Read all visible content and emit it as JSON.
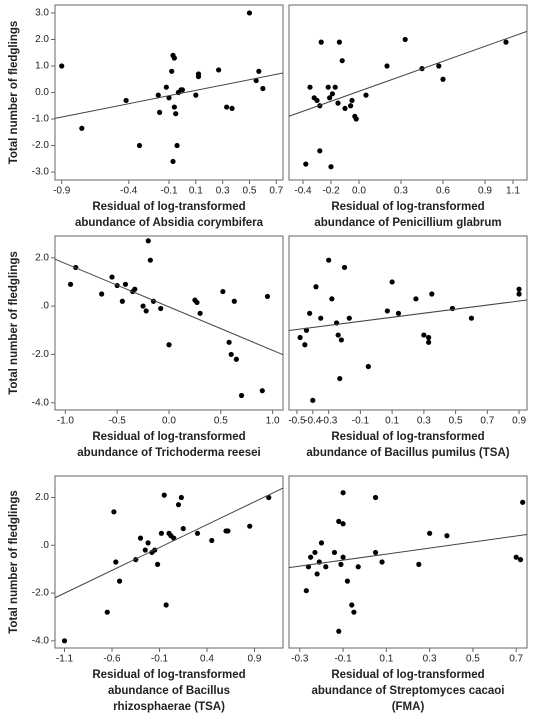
{
  "chart_data": [
    {
      "type": "scatter",
      "ylabel": "Total number of fledglings",
      "xlabel": [
        "Residual of log-transformed",
        "abundance of Absidia corymbifera"
      ],
      "x": [
        -0.9,
        -0.75,
        -0.42,
        -0.32,
        -0.18,
        -0.17,
        -0.12,
        -0.1,
        -0.08,
        -0.07,
        -0.06,
        -0.06,
        -0.05,
        -0.07,
        -0.04,
        -0.03,
        -0.01,
        0.0,
        0.1,
        0.12,
        0.12,
        0.27,
        0.33,
        0.37,
        0.5,
        0.55,
        0.57,
        0.6
      ],
      "y": [
        1.0,
        -1.35,
        -0.3,
        -2.0,
        -0.1,
        -0.75,
        0.2,
        -0.2,
        0.8,
        1.4,
        1.3,
        -0.55,
        -0.8,
        -2.6,
        -2.0,
        0.0,
        0.1,
        0.1,
        -0.1,
        0.6,
        0.7,
        0.85,
        -0.55,
        -0.6,
        3.0,
        0.45,
        0.8,
        0.15
      ],
      "xlim": [
        -0.95,
        0.75
      ],
      "ylim": [
        -3.3,
        3.3
      ],
      "xticks": [
        -0.9,
        -0.4,
        -0.1,
        0.1,
        0.3,
        0.5,
        0.7
      ],
      "yticks": [
        {
          "value": 3,
          "label": "3.0"
        },
        {
          "value": 2,
          "label": "2.0"
        },
        {
          "value": 1,
          "label": "1.0"
        },
        {
          "value": 0,
          "label": "0.0"
        },
        {
          "value": -1,
          "label": "-1.0"
        },
        {
          "value": -2,
          "label": "-2.0"
        },
        {
          "value": -3,
          "label": "-3.0"
        }
      ],
      "color": "#000000",
      "trendline": true
    },
    {
      "type": "scatter",
      "xlabel": [
        "Residual of log-transformed",
        "abundance of Penicillium glabrum"
      ],
      "x": [
        -0.38,
        -0.35,
        -0.32,
        -0.3,
        -0.28,
        -0.27,
        -0.28,
        -0.22,
        -0.21,
        -0.2,
        -0.19,
        -0.17,
        -0.15,
        -0.14,
        -0.12,
        -0.1,
        -0.06,
        -0.05,
        -0.03,
        -0.02,
        0.05,
        0.2,
        0.33,
        0.45,
        0.57,
        0.6,
        1.05
      ],
      "y": [
        -2.7,
        0.2,
        -0.2,
        -0.3,
        -0.5,
        1.9,
        -2.2,
        0.2,
        -0.2,
        -2.8,
        -0.05,
        0.2,
        -0.4,
        1.9,
        1.2,
        -0.6,
        -0.5,
        -0.3,
        -0.9,
        -1.0,
        -0.1,
        1.0,
        2.0,
        0.9,
        1.0,
        0.5,
        1.9
      ],
      "xlim": [
        -0.5,
        1.2
      ],
      "ylim": [
        -3.3,
        3.3
      ],
      "xticks": [
        -0.4,
        -0.2,
        {
          "value": 0,
          "label": "0.0"
        },
        0.3,
        0.6,
        0.9,
        1.1
      ],
      "color": "#000000",
      "trendline": true
    },
    {
      "type": "scatter",
      "ylabel": "Total number of fledglings",
      "xlabel": [
        "Residual of log-transformed",
        "abundance of Trichoderma reesei"
      ],
      "x": [
        -0.95,
        -0.9,
        -0.65,
        -0.55,
        -0.5,
        -0.45,
        -0.42,
        -0.35,
        -0.33,
        -0.25,
        -0.22,
        -0.2,
        -0.18,
        -0.15,
        -0.08,
        0.0,
        0.25,
        0.27,
        0.3,
        0.52,
        0.58,
        0.6,
        0.63,
        0.65,
        0.7,
        0.9,
        0.95
      ],
      "y": [
        0.9,
        1.6,
        0.5,
        1.2,
        0.85,
        0.2,
        0.9,
        0.6,
        0.7,
        0.0,
        -0.2,
        2.7,
        1.9,
        0.2,
        -0.1,
        -1.6,
        0.25,
        0.15,
        -0.3,
        0.6,
        -1.5,
        -2.0,
        0.2,
        -2.2,
        -3.7,
        -3.5,
        0.4
      ],
      "xlim": [
        -1.1,
        1.1
      ],
      "ylim": [
        -4.3,
        2.9
      ],
      "xticks": [
        {
          "value": -1,
          "label": "-1.0"
        },
        -0.5,
        {
          "value": 0,
          "label": "0.0"
        },
        0.5,
        {
          "value": 1,
          "label": "1.0"
        }
      ],
      "yticks": [
        {
          "value": 2,
          "label": "2.0"
        },
        {
          "value": 0,
          "label": ".0"
        },
        {
          "value": -2,
          "label": "-2.0"
        },
        {
          "value": -4,
          "label": "-4.0"
        }
      ],
      "color": "#000000",
      "trendline": true
    },
    {
      "type": "scatter",
      "xlabel": [
        "Residual of log-transformed",
        "abundance of Bacillus pumilus (TSA)"
      ],
      "x": [
        -0.48,
        -0.45,
        -0.44,
        -0.42,
        -0.4,
        -0.38,
        -0.35,
        -0.3,
        -0.28,
        -0.25,
        -0.24,
        -0.23,
        -0.22,
        -0.2,
        -0.17,
        -0.05,
        0.07,
        0.1,
        0.14,
        0.25,
        0.3,
        0.33,
        0.33,
        0.35,
        0.48,
        0.6,
        0.9,
        0.9
      ],
      "y": [
        -1.3,
        -1.6,
        -1.0,
        -0.3,
        -3.9,
        0.8,
        -0.5,
        1.9,
        0.3,
        -0.7,
        -1.2,
        -3.0,
        -1.4,
        1.6,
        -0.5,
        -2.5,
        -0.2,
        1.0,
        -0.3,
        0.3,
        -1.2,
        -1.5,
        -1.3,
        0.5,
        -0.1,
        -0.5,
        0.7,
        0.5
      ],
      "xlim": [
        -0.55,
        0.95
      ],
      "ylim": [
        -4.3,
        2.9
      ],
      "xticks": [
        -0.5,
        -0.4,
        -0.3,
        -0.1,
        0.1,
        0.3,
        0.5,
        0.7,
        0.9
      ],
      "color": "#000000",
      "trendline": true
    },
    {
      "type": "scatter",
      "ylabel": "Total number of fledglings",
      "xlabel": [
        "Residual of log-transformed",
        "abundance of Bacillus",
        "rhizosphaerae (TSA)"
      ],
      "x": [
        -1.1,
        -0.65,
        -0.58,
        -0.56,
        -0.52,
        -0.35,
        -0.3,
        -0.25,
        -0.22,
        -0.18,
        -0.15,
        -0.12,
        -0.08,
        -0.05,
        -0.03,
        0.0,
        0.02,
        0.05,
        0.1,
        0.13,
        0.15,
        0.3,
        0.45,
        0.6,
        0.62,
        0.85,
        1.05
      ],
      "y": [
        -4.0,
        -2.8,
        1.4,
        -0.7,
        -1.5,
        -0.6,
        0.3,
        -0.2,
        0.1,
        -0.3,
        -0.2,
        -0.8,
        0.5,
        2.1,
        -2.5,
        0.5,
        0.4,
        0.3,
        1.7,
        2.0,
        0.7,
        0.5,
        0.2,
        0.6,
        0.6,
        0.8,
        2.0
      ],
      "xlim": [
        -1.2,
        1.2
      ],
      "ylim": [
        -4.3,
        2.9
      ],
      "xticks": [
        -1.1,
        -0.6,
        -0.1,
        0.4,
        0.9
      ],
      "yticks": [
        {
          "value": 2,
          "label": "2.0"
        },
        {
          "value": 0,
          "label": ".0"
        },
        {
          "value": -2,
          "label": "-2.0"
        },
        {
          "value": -4,
          "label": "-4.0"
        }
      ],
      "color": "#000000",
      "trendline": true
    },
    {
      "type": "scatter",
      "xlabel": [
        "Residual of log-transformed",
        "abundance of Streptomyces cacaoi",
        "(FMA)"
      ],
      "x": [
        -0.27,
        -0.26,
        -0.25,
        -0.23,
        -0.22,
        -0.21,
        -0.2,
        -0.18,
        -0.14,
        -0.12,
        -0.12,
        -0.11,
        -0.1,
        -0.1,
        -0.1,
        -0.08,
        -0.06,
        -0.05,
        -0.03,
        0.05,
        0.05,
        0.08,
        0.25,
        0.3,
        0.38,
        0.7,
        0.72,
        0.73
      ],
      "y": [
        -1.9,
        -0.9,
        -0.5,
        -0.3,
        -1.2,
        -0.7,
        0.1,
        -0.9,
        -0.3,
        1.0,
        -3.6,
        -0.8,
        -0.5,
        0.9,
        2.2,
        -1.5,
        -2.5,
        -2.8,
        -0.9,
        2.0,
        -0.3,
        -0.7,
        -0.8,
        0.5,
        0.4,
        -0.5,
        -0.6,
        1.8
      ],
      "xlim": [
        -0.35,
        0.75
      ],
      "ylim": [
        -4.3,
        2.9
      ],
      "xticks": [
        -0.3,
        -0.1,
        0.1,
        0.3,
        0.5,
        0.7
      ],
      "color": "#000000",
      "trendline": true
    }
  ]
}
